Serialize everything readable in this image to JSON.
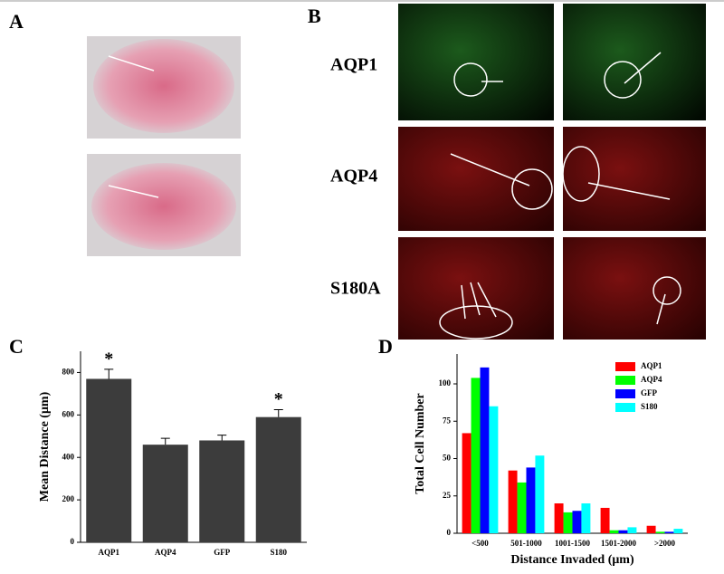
{
  "panels": [
    "A",
    "B",
    "C",
    "D"
  ],
  "row_labels": [
    "AQP1",
    "AQP4",
    "S180A"
  ],
  "chart_data": [
    {
      "type": "bar",
      "categories": [
        "AQP1",
        "AQP4",
        "GFP",
        "S180"
      ],
      "values": [
        770,
        460,
        480,
        590
      ],
      "errors": [
        45,
        30,
        25,
        35
      ],
      "color": "#3c3c3c",
      "ylabel": "Mean Distance (μm)",
      "ylim": [
        0,
        900
      ],
      "yticks": [
        0,
        200,
        400,
        600,
        800
      ],
      "annotations": [
        {
          "text": "*",
          "index": 0
        },
        {
          "text": "*",
          "index": 3
        }
      ]
    },
    {
      "type": "grouped_bar",
      "categories": [
        "<500",
        "501-1000",
        "1001-1500",
        "1501-2000",
        ">2000"
      ],
      "series": [
        {
          "name": "AQP1",
          "color": "#ff0000",
          "values": [
            67,
            42,
            20,
            17,
            5
          ]
        },
        {
          "name": "AQP4",
          "color": "#00ff00",
          "values": [
            104,
            34,
            14,
            2,
            1
          ]
        },
        {
          "name": "GFP",
          "color": "#0000ff",
          "values": [
            111,
            44,
            15,
            2,
            1
          ]
        },
        {
          "name": "S180",
          "color": "#00ffff",
          "values": [
            85,
            52,
            20,
            4,
            3
          ]
        }
      ],
      "xlabel": "Distance Invaded (μm)",
      "ylabel": "Total Cell Number",
      "ylim": [
        0,
        120
      ],
      "yticks": [
        0,
        25,
        50,
        75,
        100
      ],
      "legend": "upper right"
    }
  ]
}
